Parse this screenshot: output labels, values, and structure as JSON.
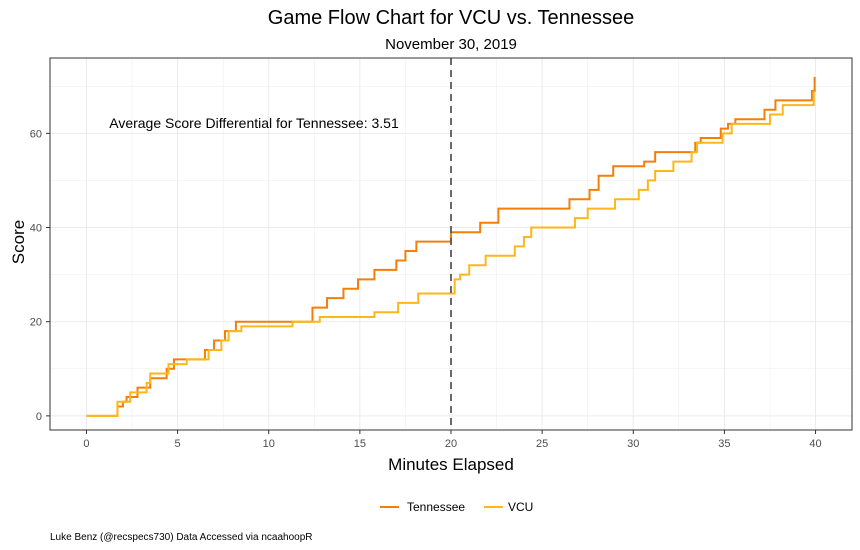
{
  "chart_data": {
    "type": "line",
    "title": "Game Flow Chart for VCU vs. Tennessee",
    "subtitle": "November 30, 2019",
    "xlabel": "Minutes Elapsed",
    "ylabel": "Score",
    "xlim": [
      -2,
      42
    ],
    "ylim": [
      -3,
      76
    ],
    "x_ticks": [
      0,
      5,
      10,
      15,
      20,
      25,
      30,
      35,
      40
    ],
    "y_ticks": [
      0,
      20,
      40,
      60
    ],
    "grid": true,
    "legend_position": "bottom",
    "halftime_marker": 20,
    "annotation": "Average Score Differential for Tennessee: 3.51",
    "caption": "Luke Benz (@recspecs730) Data Accessed via ncaahoopR",
    "series": [
      {
        "name": "Tennessee",
        "color": "#F27F0C",
        "points": [
          [
            0,
            0
          ],
          [
            1.7,
            0
          ],
          [
            1.7,
            2
          ],
          [
            2,
            2
          ],
          [
            2,
            3
          ],
          [
            2.2,
            3
          ],
          [
            2.2,
            4
          ],
          [
            2.8,
            4
          ],
          [
            2.8,
            6
          ],
          [
            3.5,
            6
          ],
          [
            3.5,
            8
          ],
          [
            4.4,
            8
          ],
          [
            4.4,
            10
          ],
          [
            4.8,
            10
          ],
          [
            4.8,
            12
          ],
          [
            6.5,
            12
          ],
          [
            6.5,
            14
          ],
          [
            7,
            14
          ],
          [
            7,
            16
          ],
          [
            7.6,
            16
          ],
          [
            7.6,
            18
          ],
          [
            8.2,
            18
          ],
          [
            8.2,
            20
          ],
          [
            12.4,
            20
          ],
          [
            12.4,
            23
          ],
          [
            13.2,
            23
          ],
          [
            13.2,
            25
          ],
          [
            14.1,
            25
          ],
          [
            14.1,
            27
          ],
          [
            14.9,
            27
          ],
          [
            14.9,
            29
          ],
          [
            15.8,
            29
          ],
          [
            15.8,
            31
          ],
          [
            17,
            31
          ],
          [
            17,
            33
          ],
          [
            17.5,
            33
          ],
          [
            17.5,
            35
          ],
          [
            18.1,
            35
          ],
          [
            18.1,
            37
          ],
          [
            20,
            37
          ],
          [
            20,
            39
          ],
          [
            21.6,
            39
          ],
          [
            21.6,
            41
          ],
          [
            22.6,
            41
          ],
          [
            22.6,
            44
          ],
          [
            26.5,
            44
          ],
          [
            26.5,
            46
          ],
          [
            27.6,
            46
          ],
          [
            27.6,
            48
          ],
          [
            28.1,
            48
          ],
          [
            28.1,
            51
          ],
          [
            28.9,
            51
          ],
          [
            28.9,
            53
          ],
          [
            30.6,
            53
          ],
          [
            30.6,
            54
          ],
          [
            31.2,
            54
          ],
          [
            31.2,
            56
          ],
          [
            33.4,
            56
          ],
          [
            33.4,
            58
          ],
          [
            33.7,
            58
          ],
          [
            33.7,
            59
          ],
          [
            34.8,
            59
          ],
          [
            34.8,
            61
          ],
          [
            35.2,
            61
          ],
          [
            35.2,
            62
          ],
          [
            35.6,
            62
          ],
          [
            35.6,
            63
          ],
          [
            37.2,
            63
          ],
          [
            37.2,
            65
          ],
          [
            37.8,
            65
          ],
          [
            37.8,
            67
          ],
          [
            39.8,
            67
          ],
          [
            39.8,
            69
          ],
          [
            39.95,
            69
          ],
          [
            39.95,
            72
          ]
        ]
      },
      {
        "name": "VCU",
        "color": "#FDB71A",
        "points": [
          [
            0,
            0
          ],
          [
            1.7,
            0
          ],
          [
            1.7,
            3
          ],
          [
            2.4,
            3
          ],
          [
            2.4,
            5
          ],
          [
            3.3,
            5
          ],
          [
            3.3,
            7
          ],
          [
            3.5,
            7
          ],
          [
            3.5,
            9
          ],
          [
            4.5,
            9
          ],
          [
            4.5,
            11
          ],
          [
            5.5,
            11
          ],
          [
            5.5,
            12
          ],
          [
            6.7,
            12
          ],
          [
            6.7,
            14
          ],
          [
            7.4,
            14
          ],
          [
            7.4,
            16
          ],
          [
            7.8,
            16
          ],
          [
            7.8,
            18
          ],
          [
            8.5,
            18
          ],
          [
            8.5,
            19
          ],
          [
            11.3,
            19
          ],
          [
            11.3,
            20
          ],
          [
            12.8,
            20
          ],
          [
            12.8,
            21
          ],
          [
            15.8,
            21
          ],
          [
            15.8,
            22
          ],
          [
            17.1,
            22
          ],
          [
            17.1,
            24
          ],
          [
            18.2,
            24
          ],
          [
            18.2,
            26
          ],
          [
            20.2,
            26
          ],
          [
            20.2,
            29
          ],
          [
            20.5,
            29
          ],
          [
            20.5,
            30
          ],
          [
            21,
            30
          ],
          [
            21,
            32
          ],
          [
            21.9,
            32
          ],
          [
            21.9,
            34
          ],
          [
            23.5,
            34
          ],
          [
            23.5,
            36
          ],
          [
            24,
            36
          ],
          [
            24,
            38
          ],
          [
            24.4,
            38
          ],
          [
            24.4,
            40
          ],
          [
            26.8,
            40
          ],
          [
            26.8,
            42
          ],
          [
            27.5,
            42
          ],
          [
            27.5,
            44
          ],
          [
            29,
            44
          ],
          [
            29,
            46
          ],
          [
            30.3,
            46
          ],
          [
            30.3,
            48
          ],
          [
            30.8,
            48
          ],
          [
            30.8,
            50
          ],
          [
            31.2,
            50
          ],
          [
            31.2,
            52
          ],
          [
            32.2,
            52
          ],
          [
            32.2,
            54
          ],
          [
            33.2,
            54
          ],
          [
            33.2,
            56
          ],
          [
            33.5,
            56
          ],
          [
            33.5,
            58
          ],
          [
            34.9,
            58
          ],
          [
            34.9,
            60
          ],
          [
            35.4,
            60
          ],
          [
            35.4,
            62
          ],
          [
            37.5,
            62
          ],
          [
            37.5,
            64
          ],
          [
            38.2,
            64
          ],
          [
            38.2,
            66
          ],
          [
            39.9,
            66
          ],
          [
            39.9,
            69
          ]
        ]
      }
    ]
  }
}
